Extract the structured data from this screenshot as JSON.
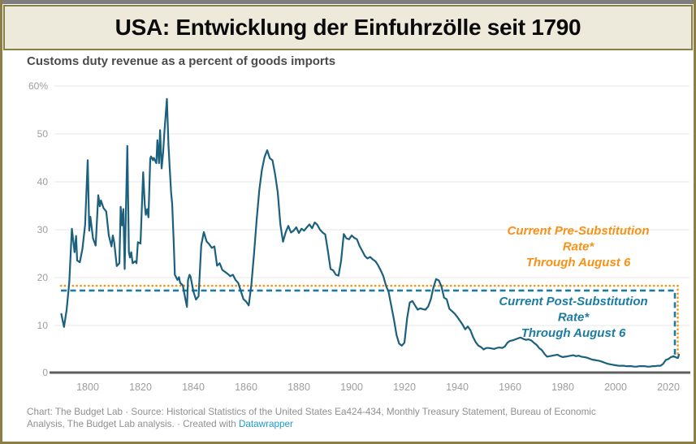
{
  "banner": {
    "title": "USA: Entwicklung der Einfuhrzölle seit 1790"
  },
  "chart": {
    "title": "Customs duty revenue as a percent of goods imports"
  },
  "footer": {
    "line1": "Chart: The Budget Lab · Source: Historical Statistics of the United States Ea424-434, Monthly Treasury Statement, Bureau of Economic",
    "line2": "Analysis, The Budget Lab analysis. · Created with ",
    "link_label": "Datawrapper"
  },
  "colors": {
    "line": "#1B607D",
    "pre_substitution": "#FA9116",
    "post_substitution": "#1B7CA3",
    "grid": "#E7E7E7",
    "axis_text": "#9E9E9E",
    "baseline": "#5F5F5F",
    "banner_border": "#8C7F45",
    "banner_bg": "#EEEADB",
    "link": "#1E9BCD"
  },
  "chart_data": {
    "type": "line",
    "title": "Customs duty revenue as a percent of goods imports",
    "xlabel": "",
    "ylabel": "",
    "grid": "horizontal",
    "legend": "none",
    "xlim": [
      1788,
      2026
    ],
    "ylim": [
      0,
      60
    ],
    "x_ticks": [
      1800,
      1820,
      1840,
      1860,
      1880,
      1900,
      1920,
      1940,
      1960,
      1980,
      2000,
      2020
    ],
    "y_ticks": [
      {
        "value": 60,
        "label": "60%"
      },
      {
        "value": 50,
        "label": "50"
      },
      {
        "value": 40,
        "label": "40"
      },
      {
        "value": 30,
        "label": "30"
      },
      {
        "value": 20,
        "label": "20"
      },
      {
        "value": 10,
        "label": "10"
      },
      {
        "value": 0,
        "label": "0"
      }
    ],
    "series": [
      {
        "name": "Customs duty revenue as a percent of goods imports",
        "points": [
          [
            1790,
            12.4
          ],
          [
            1791,
            9.7
          ],
          [
            1792,
            13.2
          ],
          [
            1793,
            19.0
          ],
          [
            1794,
            30.2
          ],
          [
            1795,
            25.3
          ],
          [
            1795.6,
            28.7
          ],
          [
            1796,
            23.6
          ],
          [
            1797,
            23.2
          ],
          [
            1798,
            26.0
          ],
          [
            1799,
            31.0
          ],
          [
            1800,
            44.5
          ],
          [
            1800.6,
            29.8
          ],
          [
            1801,
            32.7
          ],
          [
            1802,
            28.2
          ],
          [
            1803,
            26.7
          ],
          [
            1804,
            37.2
          ],
          [
            1804.6,
            34.9
          ],
          [
            1805,
            36.1
          ],
          [
            1806,
            34.5
          ],
          [
            1807,
            33.8
          ],
          [
            1808,
            28.8
          ],
          [
            1809,
            26.5
          ],
          [
            1809.5,
            28.8
          ],
          [
            1810,
            27.5
          ],
          [
            1811,
            22.4
          ],
          [
            1812,
            23.0
          ],
          [
            1812.5,
            34.8
          ],
          [
            1813,
            30.9
          ],
          [
            1813.5,
            34.3
          ],
          [
            1814,
            21.8
          ],
          [
            1815,
            47.5
          ],
          [
            1815.6,
            25.3
          ],
          [
            1816,
            24.2
          ],
          [
            1816.5,
            25.3
          ],
          [
            1817,
            23.0
          ],
          [
            1818,
            23.4
          ],
          [
            1818.5,
            23.0
          ],
          [
            1819,
            27.4
          ],
          [
            1820,
            27.1
          ],
          [
            1821,
            42.0
          ],
          [
            1821.6,
            35.4
          ],
          [
            1822,
            33.1
          ],
          [
            1822.6,
            34.3
          ],
          [
            1823,
            32.6
          ],
          [
            1823.7,
            44.8
          ],
          [
            1824,
            45.3
          ],
          [
            1824.7,
            44.5
          ],
          [
            1825,
            45.0
          ],
          [
            1826,
            43.9
          ],
          [
            1826.4,
            48.7
          ],
          [
            1827,
            43.9
          ],
          [
            1827.4,
            50.8
          ],
          [
            1828,
            42.8
          ],
          [
            1828.6,
            46.2
          ],
          [
            1829,
            50.1
          ],
          [
            1830,
            57.3
          ],
          [
            1830.6,
            47.9
          ],
          [
            1831,
            43.4
          ],
          [
            1831.6,
            37.7
          ],
          [
            1832,
            35.4
          ],
          [
            1832.6,
            27.4
          ],
          [
            1833,
            20.6
          ],
          [
            1834,
            19.5
          ],
          [
            1834.6,
            20.1
          ],
          [
            1835,
            18.9
          ],
          [
            1836,
            18.4
          ],
          [
            1837,
            15.5
          ],
          [
            1837.6,
            13.9
          ],
          [
            1838,
            19.5
          ],
          [
            1838.6,
            20.6
          ],
          [
            1839,
            20.1
          ],
          [
            1840,
            17.2
          ],
          [
            1841,
            15.4
          ],
          [
            1842,
            16.1
          ],
          [
            1843,
            26.8
          ],
          [
            1844,
            29.5
          ],
          [
            1845,
            27.6
          ],
          [
            1846,
            27.0
          ],
          [
            1847,
            26.2
          ],
          [
            1848,
            26.5
          ],
          [
            1849,
            22.5
          ],
          [
            1850,
            23.0
          ],
          [
            1851,
            21.6
          ],
          [
            1852,
            21.2
          ],
          [
            1853,
            20.8
          ],
          [
            1854,
            20.3
          ],
          [
            1855,
            20.6
          ],
          [
            1856,
            19.5
          ],
          [
            1857,
            18.9
          ],
          [
            1858,
            17.2
          ],
          [
            1859,
            15.5
          ],
          [
            1860,
            15.0
          ],
          [
            1861,
            14.2
          ],
          [
            1862,
            18.5
          ],
          [
            1863,
            25.0
          ],
          [
            1864,
            32.0
          ],
          [
            1865,
            38.3
          ],
          [
            1866,
            42.5
          ],
          [
            1867,
            45.2
          ],
          [
            1868,
            46.6
          ],
          [
            1869,
            44.9
          ],
          [
            1870,
            44.5
          ],
          [
            1871,
            41.5
          ],
          [
            1872,
            37.8
          ],
          [
            1873,
            31.0
          ],
          [
            1874,
            27.5
          ],
          [
            1875,
            29.5
          ],
          [
            1876,
            30.8
          ],
          [
            1877,
            29.4
          ],
          [
            1878,
            29.8
          ],
          [
            1879,
            30.5
          ],
          [
            1880,
            29.3
          ],
          [
            1881,
            30.2
          ],
          [
            1882,
            29.8
          ],
          [
            1883,
            30.5
          ],
          [
            1884,
            31.1
          ],
          [
            1885,
            30.3
          ],
          [
            1886,
            31.5
          ],
          [
            1887,
            31.0
          ],
          [
            1888,
            30.0
          ],
          [
            1889,
            29.4
          ],
          [
            1890,
            29.0
          ],
          [
            1891,
            25.5
          ],
          [
            1892,
            21.8
          ],
          [
            1893,
            21.5
          ],
          [
            1894,
            20.6
          ],
          [
            1895,
            20.4
          ],
          [
            1896,
            23.5
          ],
          [
            1897,
            29.1
          ],
          [
            1898,
            28.2
          ],
          [
            1899,
            28.0
          ],
          [
            1900,
            28.8
          ],
          [
            1901,
            28.3
          ],
          [
            1902,
            28.0
          ],
          [
            1903,
            26.6
          ],
          [
            1904,
            25.6
          ],
          [
            1905,
            24.5
          ],
          [
            1906,
            24.0
          ],
          [
            1907,
            24.3
          ],
          [
            1908,
            23.8
          ],
          [
            1909,
            23.4
          ],
          [
            1910,
            22.6
          ],
          [
            1911,
            21.5
          ],
          [
            1912,
            20.3
          ],
          [
            1913,
            18.3
          ],
          [
            1914,
            17.0
          ],
          [
            1915,
            14.1
          ],
          [
            1916,
            11.3
          ],
          [
            1917,
            8.0
          ],
          [
            1918,
            6.2
          ],
          [
            1919,
            5.8
          ],
          [
            1920,
            6.4
          ],
          [
            1921,
            11.5
          ],
          [
            1922,
            14.8
          ],
          [
            1923,
            15.1
          ],
          [
            1924,
            14.2
          ],
          [
            1925,
            13.3
          ],
          [
            1926,
            13.6
          ],
          [
            1927,
            13.4
          ],
          [
            1928,
            13.3
          ],
          [
            1929,
            14.0
          ],
          [
            1930,
            15.5
          ],
          [
            1931,
            18.0
          ],
          [
            1932,
            19.7
          ],
          [
            1933,
            19.4
          ],
          [
            1934,
            18.2
          ],
          [
            1935,
            15.8
          ],
          [
            1936,
            15.5
          ],
          [
            1937,
            13.5
          ],
          [
            1938,
            13.0
          ],
          [
            1939,
            12.5
          ],
          [
            1940,
            11.8
          ],
          [
            1941,
            11.0
          ],
          [
            1942,
            10.2
          ],
          [
            1943,
            9.2
          ],
          [
            1944,
            9.8
          ],
          [
            1945,
            9.0
          ],
          [
            1946,
            7.6
          ],
          [
            1947,
            6.5
          ],
          [
            1948,
            5.8
          ],
          [
            1949,
            5.5
          ],
          [
            1950,
            5.0
          ],
          [
            1951,
            5.3
          ],
          [
            1952,
            5.3
          ],
          [
            1953,
            5.2
          ],
          [
            1954,
            5.1
          ],
          [
            1955,
            5.3
          ],
          [
            1956,
            5.4
          ],
          [
            1957,
            5.3
          ],
          [
            1958,
            5.6
          ],
          [
            1959,
            6.4
          ],
          [
            1960,
            6.8
          ],
          [
            1961,
            6.9
          ],
          [
            1962,
            7.1
          ],
          [
            1963,
            7.3
          ],
          [
            1964,
            7.5
          ],
          [
            1965,
            7.2
          ],
          [
            1966,
            7.0
          ],
          [
            1967,
            7.1
          ],
          [
            1968,
            6.9
          ],
          [
            1969,
            6.4
          ],
          [
            1970,
            6.0
          ],
          [
            1971,
            5.3
          ],
          [
            1972,
            4.9
          ],
          [
            1973,
            4.1
          ],
          [
            1974,
            3.5
          ],
          [
            1975,
            3.6
          ],
          [
            1976,
            3.7
          ],
          [
            1977,
            3.8
          ],
          [
            1978,
            3.9
          ],
          [
            1979,
            3.6
          ],
          [
            1980,
            3.4
          ],
          [
            1981,
            3.5
          ],
          [
            1982,
            3.6
          ],
          [
            1983,
            3.7
          ],
          [
            1984,
            3.8
          ],
          [
            1985,
            3.6
          ],
          [
            1986,
            3.7
          ],
          [
            1987,
            3.5
          ],
          [
            1988,
            3.4
          ],
          [
            1989,
            3.3
          ],
          [
            1990,
            3.1
          ],
          [
            1991,
            2.9
          ],
          [
            1992,
            2.8
          ],
          [
            1993,
            2.7
          ],
          [
            1994,
            2.6
          ],
          [
            1995,
            2.4
          ],
          [
            1996,
            2.2
          ],
          [
            1997,
            2.0
          ],
          [
            1998,
            1.9
          ],
          [
            1999,
            1.8
          ],
          [
            2000,
            1.7
          ],
          [
            2001,
            1.6
          ],
          [
            2002,
            1.6
          ],
          [
            2003,
            1.6
          ],
          [
            2004,
            1.5
          ],
          [
            2005,
            1.5
          ],
          [
            2006,
            1.5
          ],
          [
            2007,
            1.4
          ],
          [
            2008,
            1.4
          ],
          [
            2009,
            1.5
          ],
          [
            2010,
            1.5
          ],
          [
            2011,
            1.5
          ],
          [
            2012,
            1.4
          ],
          [
            2013,
            1.4
          ],
          [
            2014,
            1.5
          ],
          [
            2015,
            1.5
          ],
          [
            2016,
            1.6
          ],
          [
            2017,
            1.6
          ],
          [
            2018,
            2.0
          ],
          [
            2019,
            2.8
          ],
          [
            2020,
            3.0
          ],
          [
            2021,
            3.4
          ],
          [
            2022,
            3.6
          ],
          [
            2023,
            3.3
          ],
          [
            2023.6,
            3.2
          ],
          [
            2024,
            3.9
          ]
        ]
      }
    ],
    "reference_lines": [
      {
        "id": "pre-substitution",
        "value": 18.3,
        "style": "dotted",
        "color": "#FA9116",
        "drop_to": 3.9,
        "label_lines": [
          "Current Pre-Substitution",
          "Rate*",
          "Through August 6"
        ]
      },
      {
        "id": "post-substitution",
        "value": 17.3,
        "style": "dashed",
        "color": "#1B7CA3",
        "drop_to": 3.9,
        "label_lines": [
          "Current Post-Substitution",
          "Rate*",
          "Through August 6"
        ]
      }
    ]
  }
}
